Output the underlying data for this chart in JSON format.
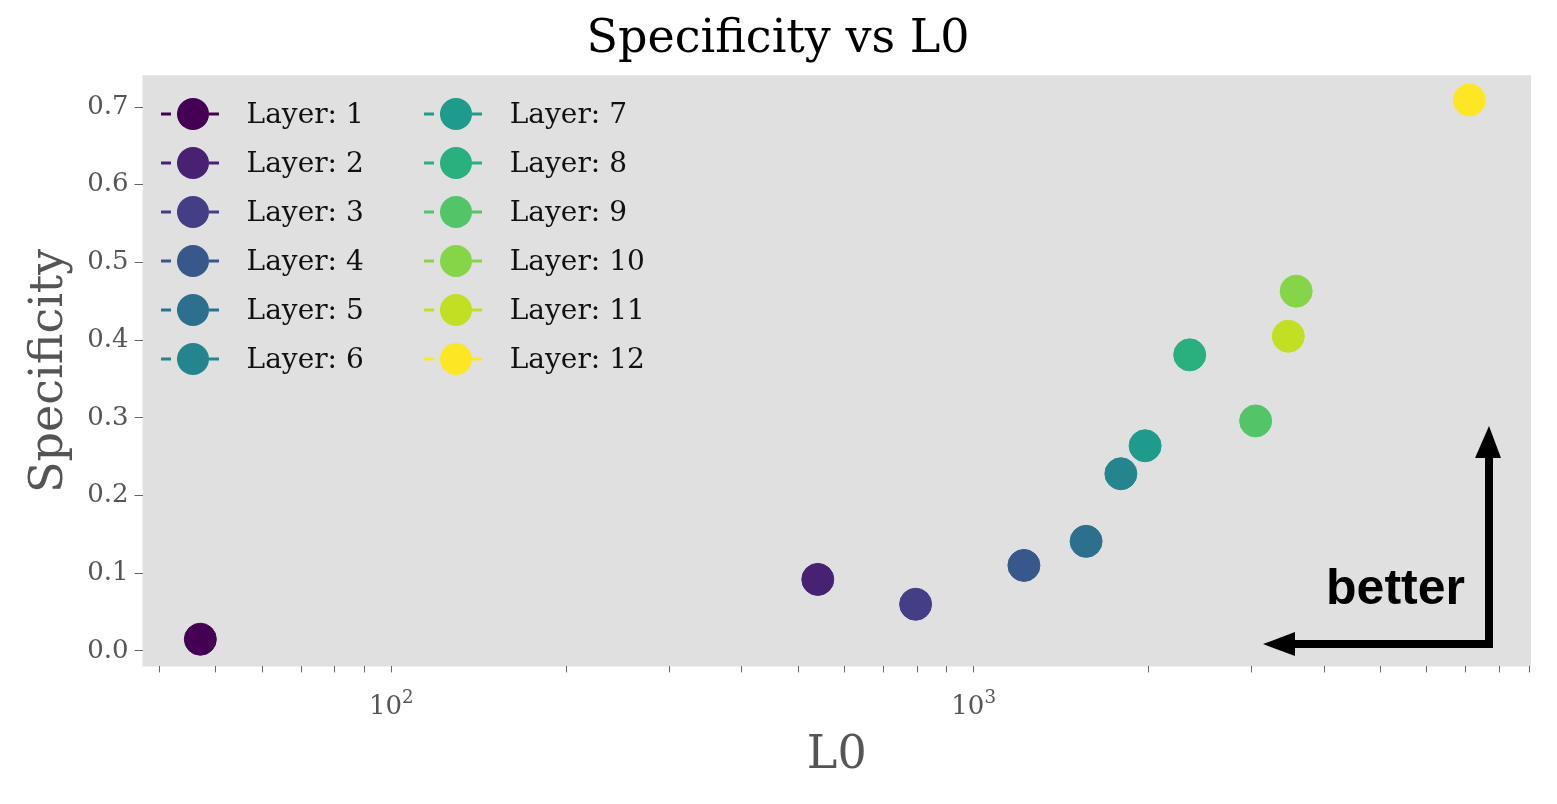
{
  "chart_data": {
    "type": "scatter",
    "title": "Specificity vs L0",
    "xlabel": "L0",
    "ylabel": "Specificity",
    "log": "x",
    "xlim": [
      37.4,
      9060
    ],
    "ylim": [
      -0.02,
      0.741
    ],
    "xticks": [
      {
        "value": 40,
        "label": null
      },
      {
        "value": 50,
        "label": null
      },
      {
        "value": 60,
        "label": null
      },
      {
        "value": 70,
        "label": null
      },
      {
        "value": 80,
        "label": null
      },
      {
        "value": 90,
        "label": null
      },
      {
        "value": 100,
        "label": "10$^{2}$"
      },
      {
        "value": 200,
        "label": null
      },
      {
        "value": 300,
        "label": null
      },
      {
        "value": 400,
        "label": null
      },
      {
        "value": 500,
        "label": null
      },
      {
        "value": 600,
        "label": null
      },
      {
        "value": 700,
        "label": null
      },
      {
        "value": 800,
        "label": null
      },
      {
        "value": 900,
        "label": null
      },
      {
        "value": 1000,
        "label": "10$^{3}$"
      },
      {
        "value": 2000,
        "label": null
      },
      {
        "value": 3000,
        "label": null
      },
      {
        "value": 4000,
        "label": null
      },
      {
        "value": 5000,
        "label": null
      },
      {
        "value": 6000,
        "label": null
      },
      {
        "value": 7000,
        "label": null
      },
      {
        "value": 8000,
        "label": null
      },
      {
        "value": 9000,
        "label": null
      }
    ],
    "yticks": [
      {
        "value": 0,
        "label": "0.0"
      },
      {
        "value": 0.1,
        "label": "0.1"
      },
      {
        "value": 0.2,
        "label": "0.2"
      },
      {
        "value": 0.3,
        "label": "0.3"
      },
      {
        "value": 0.4,
        "label": "0.4"
      },
      {
        "value": 0.5,
        "label": "0.5"
      },
      {
        "value": 0.6,
        "label": "0.6"
      },
      {
        "value": 0.7,
        "label": "0.7"
      }
    ],
    "grid": false,
    "legend": "top left",
    "marker": "circle",
    "line_style": "dashed",
    "series": [
      {
        "name": "Layer: 1",
        "color": "#440154",
        "x": [
          47
        ],
        "values": [
          0.015
        ]
      },
      {
        "name": "Layer: 2",
        "color": "#482173",
        "x": [
          540
        ],
        "values": [
          0.092
        ]
      },
      {
        "name": "Layer: 3",
        "color": "#433e85",
        "x": [
          795
        ],
        "values": [
          0.06
        ]
      },
      {
        "name": "Layer: 4",
        "color": "#38588c",
        "x": [
          1220
        ],
        "values": [
          0.11
        ]
      },
      {
        "name": "Layer: 5",
        "color": "#2d708e",
        "x": [
          1560
        ],
        "values": [
          0.141
        ]
      },
      {
        "name": "Layer: 6",
        "color": "#25858e",
        "x": [
          1790
        ],
        "values": [
          0.228
        ]
      },
      {
        "name": "Layer: 7",
        "color": "#1e9b8a",
        "x": [
          1970
        ],
        "values": [
          0.264
        ]
      },
      {
        "name": "Layer: 8",
        "color": "#2ab07f",
        "x": [
          2350
        ],
        "values": [
          0.381
        ]
      },
      {
        "name": "Layer: 9",
        "color": "#52c569",
        "x": [
          3050
        ],
        "values": [
          0.296
        ]
      },
      {
        "name": "Layer: 10",
        "color": "#86d549",
        "x": [
          3580
        ],
        "values": [
          0.463
        ]
      },
      {
        "name": "Layer: 11",
        "color": "#c2df23",
        "x": [
          3470
        ],
        "values": [
          0.405
        ]
      },
      {
        "name": "Layer: 12",
        "color": "#fde725",
        "x": [
          7100
        ],
        "values": [
          0.709
        ]
      }
    ],
    "annotations": [
      "better"
    ]
  }
}
